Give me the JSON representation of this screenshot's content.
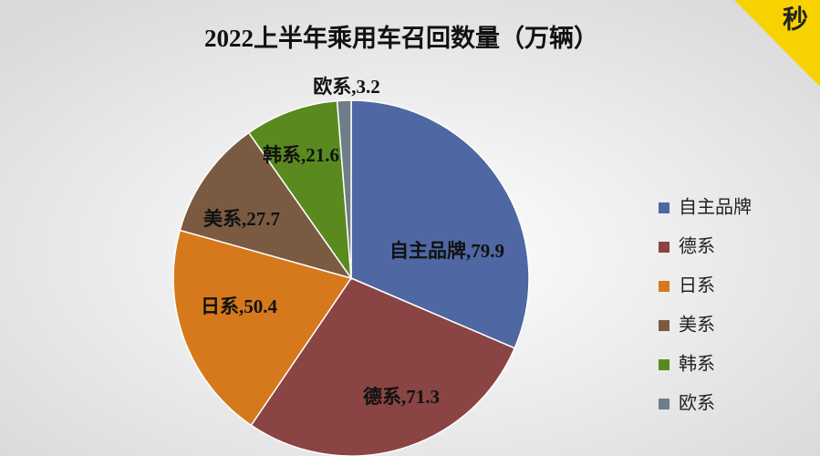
{
  "chart_data": {
    "type": "pie",
    "title": "2022上半年乘用车召回数量（万辆）",
    "categories": [
      "自主品牌",
      "德系",
      "日系",
      "美系",
      "韩系",
      "欧系"
    ],
    "values": [
      79.9,
      71.3,
      50.4,
      27.7,
      21.6,
      3.2
    ],
    "value_labels": [
      "自主品牌,79.9",
      "德系,71.3",
      "日系,50.4",
      "美系,27.7",
      "韩系,21.6",
      "欧系,3.2"
    ],
    "colors": [
      "#4f67a3",
      "#8a4444",
      "#d5791c",
      "#7a5b42",
      "#5a8a1f",
      "#6e7d88"
    ],
    "legend": "right",
    "watermark": "秒"
  }
}
